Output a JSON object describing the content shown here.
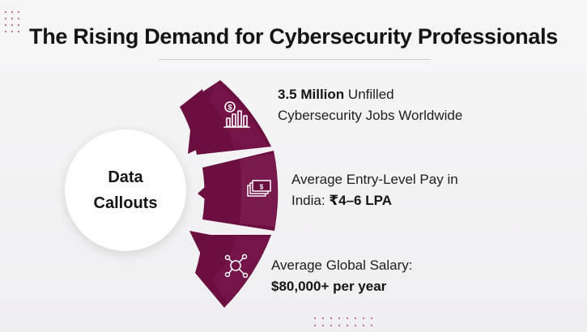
{
  "title": "The Rising Demand for Cybersecurity Professionals",
  "hub": {
    "line1": "Data",
    "line2": "Callouts"
  },
  "callouts": [
    {
      "icon": "salary-chart-icon",
      "bold": "3.5 Million",
      "text_after_bold": " Unfilled",
      "line2": "Cybersecurity Jobs Worldwide"
    },
    {
      "icon": "money-stack-icon",
      "line1": "Average Entry-Level Pay in",
      "line2_prefix": "India: ",
      "line2_bold": "₹4–6 LPA"
    },
    {
      "icon": "network-nodes-icon",
      "line1": "Average Global Salary:",
      "line2_bold": "$80,000+ per year"
    }
  ],
  "colors": {
    "segment_dark": "#6b0f40",
    "segment_mid": "#7e1a4f",
    "segment_light": "#8e2a5f",
    "dots": "#b04a78",
    "background": "#f3f2f4"
  }
}
